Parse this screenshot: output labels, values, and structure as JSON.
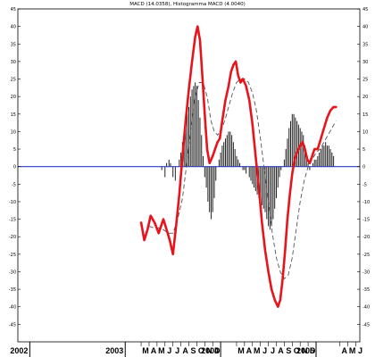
{
  "chart_data": {
    "type": "line",
    "title": "MACD (14.0358), Histogramma MACD (4.0040)",
    "ylim": [
      -50,
      45
    ],
    "y_ticks": [
      -45,
      -40,
      -35,
      -30,
      -25,
      -20,
      -15,
      -10,
      -5,
      0,
      5,
      10,
      15,
      20,
      25,
      30,
      35,
      40,
      45
    ],
    "x_ticks": [
      {
        "label": "2002",
        "m": 0.0
      },
      {
        "label": "2003",
        "m": 12.0
      },
      {
        "label": "M",
        "m": 14.0
      },
      {
        "label": "A",
        "m": 15.0
      },
      {
        "label": "M",
        "m": 16.0
      },
      {
        "label": "J",
        "m": 17.0
      },
      {
        "label": "J",
        "m": 18.0
      },
      {
        "label": "A",
        "m": 19.0
      },
      {
        "label": "S",
        "m": 20.0
      },
      {
        "label": "O",
        "m": 21.0
      },
      {
        "label": "N",
        "m": 22.0
      },
      {
        "label": "D",
        "m": 23.0
      },
      {
        "label": "2004",
        "m": 24.0
      },
      {
        "label": "M",
        "m": 26.0
      },
      {
        "label": "A",
        "m": 27.0
      },
      {
        "label": "M",
        "m": 28.0
      },
      {
        "label": "J",
        "m": 29.0
      },
      {
        "label": "J",
        "m": 30.0
      },
      {
        "label": "A",
        "m": 31.0
      },
      {
        "label": "S",
        "m": 32.0
      },
      {
        "label": "O",
        "m": 33.0
      },
      {
        "label": "N",
        "m": 34.0
      },
      {
        "label": "D",
        "m": 35.0
      },
      {
        "label": "2005",
        "m": 36.0
      },
      {
        "label": "A",
        "m": 39.0
      },
      {
        "label": "M",
        "m": 40.0
      },
      {
        "label": "J",
        "m": 41.0
      }
    ],
    "x_range": [
      -1.5,
      41.5
    ],
    "zero_line": 0,
    "macd": [
      [
        14.0,
        -16
      ],
      [
        14.4,
        -21
      ],
      [
        14.8,
        -18
      ],
      [
        15.2,
        -14
      ],
      [
        15.7,
        -16
      ],
      [
        16.2,
        -19
      ],
      [
        16.8,
        -15
      ],
      [
        17.2,
        -18
      ],
      [
        17.6,
        -21
      ],
      [
        18.0,
        -25
      ],
      [
        18.4,
        -17
      ],
      [
        18.8,
        -8
      ],
      [
        19.2,
        3
      ],
      [
        19.6,
        13
      ],
      [
        20.0,
        22
      ],
      [
        20.4,
        30
      ],
      [
        20.8,
        37
      ],
      [
        21.1,
        40
      ],
      [
        21.4,
        36
      ],
      [
        21.7,
        26
      ],
      [
        22.0,
        15
      ],
      [
        22.3,
        5
      ],
      [
        22.6,
        1
      ],
      [
        23.0,
        3
      ],
      [
        23.3,
        5
      ],
      [
        23.6,
        7
      ],
      [
        23.9,
        8
      ],
      [
        24.2,
        13
      ],
      [
        24.6,
        19
      ],
      [
        25.0,
        23
      ],
      [
        25.3,
        27
      ],
      [
        25.6,
        29
      ],
      [
        25.9,
        30
      ],
      [
        26.2,
        26
      ],
      [
        26.5,
        24
      ],
      [
        26.8,
        25
      ],
      [
        27.2,
        23
      ],
      [
        27.6,
        19
      ],
      [
        28.0,
        12
      ],
      [
        28.4,
        3
      ],
      [
        28.8,
        -6
      ],
      [
        29.2,
        -16
      ],
      [
        29.6,
        -24
      ],
      [
        30.0,
        -30
      ],
      [
        30.4,
        -35
      ],
      [
        30.8,
        -38
      ],
      [
        31.2,
        -40
      ],
      [
        31.5,
        -38
      ],
      [
        31.8,
        -32
      ],
      [
        32.1,
        -24
      ],
      [
        32.4,
        -15
      ],
      [
        32.7,
        -8
      ],
      [
        33.0,
        -2
      ],
      [
        33.3,
        2
      ],
      [
        33.6,
        4
      ],
      [
        34.0,
        6
      ],
      [
        34.3,
        7
      ],
      [
        34.6,
        5
      ],
      [
        34.9,
        2
      ],
      [
        35.2,
        1
      ],
      [
        35.5,
        3
      ],
      [
        35.8,
        5
      ],
      [
        36.2,
        5
      ],
      [
        36.6,
        8
      ],
      [
        37.0,
        11
      ],
      [
        37.4,
        14
      ],
      [
        37.8,
        16
      ],
      [
        38.2,
        17
      ],
      [
        38.5,
        17
      ]
    ],
    "signal": [
      [
        15.0,
        -17
      ],
      [
        15.6,
        -17.5
      ],
      [
        16.2,
        -17.5
      ],
      [
        16.8,
        -18
      ],
      [
        17.4,
        -19
      ],
      [
        18.0,
        -19
      ],
      [
        18.6,
        -15
      ],
      [
        19.2,
        -9
      ],
      [
        19.8,
        2
      ],
      [
        20.3,
        12
      ],
      [
        20.8,
        20
      ],
      [
        21.3,
        24
      ],
      [
        21.8,
        24
      ],
      [
        22.3,
        20
      ],
      [
        22.8,
        13
      ],
      [
        23.2,
        10
      ],
      [
        23.6,
        9
      ],
      [
        24.0,
        10
      ],
      [
        24.5,
        13
      ],
      [
        25.0,
        17
      ],
      [
        25.5,
        21
      ],
      [
        26.0,
        24
      ],
      [
        26.5,
        25
      ],
      [
        27.0,
        25
      ],
      [
        27.5,
        24
      ],
      [
        28.0,
        21
      ],
      [
        28.5,
        16
      ],
      [
        29.0,
        8
      ],
      [
        29.5,
        -1
      ],
      [
        30.0,
        -10
      ],
      [
        30.5,
        -19
      ],
      [
        31.0,
        -26
      ],
      [
        31.5,
        -30
      ],
      [
        32.0,
        -32
      ],
      [
        32.5,
        -31
      ],
      [
        33.0,
        -26
      ],
      [
        33.5,
        -18
      ],
      [
        34.0,
        -10
      ],
      [
        34.5,
        -4
      ],
      [
        35.0,
        0
      ],
      [
        35.5,
        2
      ],
      [
        36.0,
        4
      ],
      [
        36.5,
        5
      ],
      [
        37.0,
        7
      ],
      [
        37.5,
        9
      ],
      [
        38.0,
        11
      ],
      [
        38.5,
        13
      ]
    ],
    "histogram": [
      [
        16.6,
        -1
      ],
      [
        17.0,
        -3
      ],
      [
        17.2,
        1
      ],
      [
        17.5,
        2
      ],
      [
        17.7,
        1
      ],
      [
        18.0,
        -3
      ],
      [
        18.3,
        -4
      ],
      [
        18.6,
        0
      ],
      [
        18.8,
        2
      ],
      [
        19.0,
        4
      ],
      [
        19.2,
        7
      ],
      [
        19.4,
        10
      ],
      [
        19.6,
        12
      ],
      [
        19.8,
        15
      ],
      [
        20.0,
        17
      ],
      [
        20.2,
        20
      ],
      [
        20.4,
        22
      ],
      [
        20.6,
        23
      ],
      [
        20.8,
        24
      ],
      [
        21.0,
        23
      ],
      [
        21.2,
        19
      ],
      [
        21.4,
        14
      ],
      [
        21.6,
        9
      ],
      [
        21.8,
        3
      ],
      [
        22.0,
        -3
      ],
      [
        22.2,
        -6
      ],
      [
        22.4,
        -10
      ],
      [
        22.6,
        -13
      ],
      [
        22.8,
        -15
      ],
      [
        23.0,
        -13
      ],
      [
        23.2,
        -9
      ],
      [
        23.4,
        -4
      ],
      [
        23.6,
        0
      ],
      [
        23.8,
        2
      ],
      [
        24.0,
        4
      ],
      [
        24.2,
        6
      ],
      [
        24.4,
        7
      ],
      [
        24.6,
        8
      ],
      [
        24.8,
        9
      ],
      [
        25.0,
        10
      ],
      [
        25.2,
        10
      ],
      [
        25.4,
        9
      ],
      [
        25.6,
        7
      ],
      [
        25.8,
        5
      ],
      [
        26.0,
        3
      ],
      [
        26.2,
        2
      ],
      [
        26.4,
        1
      ],
      [
        26.6,
        0
      ],
      [
        26.8,
        -1
      ],
      [
        27.0,
        -1
      ],
      [
        27.2,
        -2
      ],
      [
        27.6,
        -3
      ],
      [
        27.8,
        -4
      ],
      [
        28.0,
        -5
      ],
      [
        28.2,
        -6
      ],
      [
        28.4,
        -7
      ],
      [
        28.6,
        -8
      ],
      [
        28.8,
        -9
      ],
      [
        29.0,
        -10
      ],
      [
        29.2,
        -11
      ],
      [
        29.4,
        -12
      ],
      [
        29.6,
        -13
      ],
      [
        29.8,
        -15
      ],
      [
        30.0,
        -17
      ],
      [
        30.2,
        -18
      ],
      [
        30.4,
        -17
      ],
      [
        30.6,
        -15
      ],
      [
        30.8,
        -12
      ],
      [
        31.0,
        -9
      ],
      [
        31.2,
        -6
      ],
      [
        31.4,
        -3
      ],
      [
        31.6,
        -1
      ],
      [
        32.0,
        2
      ],
      [
        32.2,
        5
      ],
      [
        32.4,
        8
      ],
      [
        32.6,
        11
      ],
      [
        32.8,
        13
      ],
      [
        33.0,
        15
      ],
      [
        33.2,
        15
      ],
      [
        33.4,
        14
      ],
      [
        33.6,
        13
      ],
      [
        33.8,
        12
      ],
      [
        34.0,
        11
      ],
      [
        34.2,
        10
      ],
      [
        34.4,
        9
      ],
      [
        34.6,
        6
      ],
      [
        34.8,
        3
      ],
      [
        35.0,
        1
      ],
      [
        35.2,
        -1
      ],
      [
        35.4,
        0
      ],
      [
        35.6,
        1
      ],
      [
        35.8,
        2
      ],
      [
        36.0,
        2
      ],
      [
        36.2,
        3
      ],
      [
        36.4,
        4
      ],
      [
        36.6,
        5
      ],
      [
        36.8,
        6
      ],
      [
        37.0,
        6
      ],
      [
        37.2,
        7
      ],
      [
        37.4,
        6
      ],
      [
        37.6,
        6
      ],
      [
        37.8,
        5
      ],
      [
        38.0,
        4
      ],
      [
        38.2,
        3
      ]
    ],
    "colors": {
      "macd": "#e8141c",
      "signal": "#555555",
      "histogram": "#222222",
      "zero": "#2b3bbd",
      "axis": "#000000"
    },
    "grid": false
  }
}
